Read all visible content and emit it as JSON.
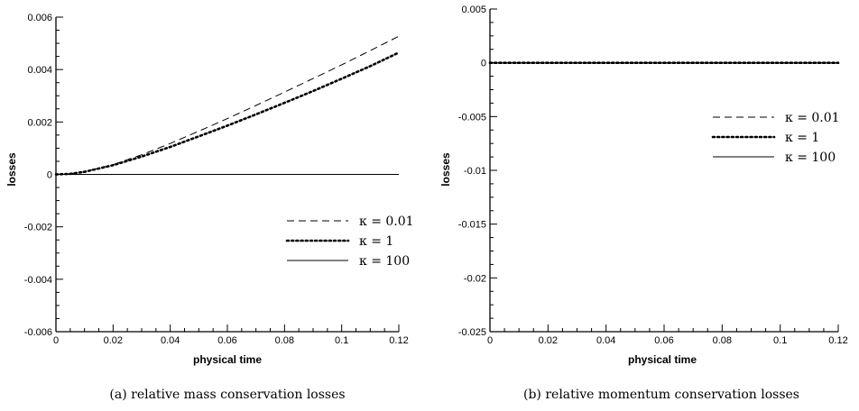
{
  "chart_data": [
    {
      "type": "line",
      "caption": "(a) relative mass conservation losses",
      "xlabel": "physical time",
      "ylabel": "losses",
      "xlim": [
        0,
        0.12
      ],
      "ylim": [
        -0.006,
        0.006
      ],
      "xticks": [
        "0",
        "0.02",
        "0.04",
        "0.06",
        "0.08",
        "0.1",
        "0.12"
      ],
      "xtick_values": [
        0,
        0.02,
        0.04,
        0.06,
        0.08,
        0.1,
        0.12
      ],
      "yticks": [
        "-0.006",
        "-0.004",
        "-0.002",
        "0",
        "0.002",
        "0.004",
        "0.006"
      ],
      "ytick_values": [
        -0.006,
        -0.004,
        -0.002,
        0,
        0.002,
        0.004,
        0.006
      ],
      "legend_position": "lower-right",
      "series": [
        {
          "name": "κ = 0.01",
          "style": "dashed",
          "x": [
            0,
            0.005,
            0.01,
            0.02,
            0.03,
            0.04,
            0.05,
            0.06,
            0.07,
            0.08,
            0.09,
            0.1,
            0.11,
            0.12
          ],
          "y": [
            0,
            2e-05,
            0.0001,
            0.00037,
            0.00075,
            0.00118,
            0.00165,
            0.00213,
            0.00263,
            0.00314,
            0.00366,
            0.00418,
            0.00472,
            0.00527
          ]
        },
        {
          "name": "κ = 1",
          "style": "dotted",
          "x": [
            0,
            0.005,
            0.01,
            0.02,
            0.03,
            0.04,
            0.05,
            0.06,
            0.07,
            0.08,
            0.09,
            0.1,
            0.11,
            0.12
          ],
          "y": [
            0,
            2e-05,
            0.0001,
            0.00035,
            0.00068,
            0.00105,
            0.00145,
            0.00186,
            0.00229,
            0.00273,
            0.00318,
            0.00365,
            0.00413,
            0.00465
          ]
        },
        {
          "name": "κ = 100",
          "style": "solid",
          "x": [
            0,
            0.12
          ],
          "y": [
            0,
            0
          ]
        }
      ]
    },
    {
      "type": "line",
      "caption": "(b) relative momentum conservation losses",
      "xlabel": "physical time",
      "ylabel": "losses",
      "xlim": [
        0,
        0.12
      ],
      "ylim": [
        -0.025,
        0.005
      ],
      "xticks": [
        "0",
        "0.02",
        "0.04",
        "0.06",
        "0.08",
        "0.1",
        "0.12"
      ],
      "xtick_values": [
        0,
        0.02,
        0.04,
        0.06,
        0.08,
        0.1,
        0.12
      ],
      "yticks": [
        "-0.025",
        "-0.02",
        "-0.015",
        "-0.01",
        "-0.005",
        "0",
        "0.005"
      ],
      "ytick_values": [
        -0.025,
        -0.02,
        -0.015,
        -0.01,
        -0.005,
        0,
        0.005
      ],
      "legend_position": "upper-right",
      "series": [
        {
          "name": "κ = 0.01",
          "style": "dashed",
          "x": [
            0,
            0.12
          ],
          "y": [
            0,
            0
          ]
        },
        {
          "name": "κ = 1",
          "style": "dotted",
          "x": [
            0,
            0.12
          ],
          "y": [
            0,
            0
          ]
        },
        {
          "name": "κ = 100",
          "style": "solid",
          "x": [
            0,
            0.12
          ],
          "y": [
            0,
            0
          ]
        }
      ]
    }
  ]
}
